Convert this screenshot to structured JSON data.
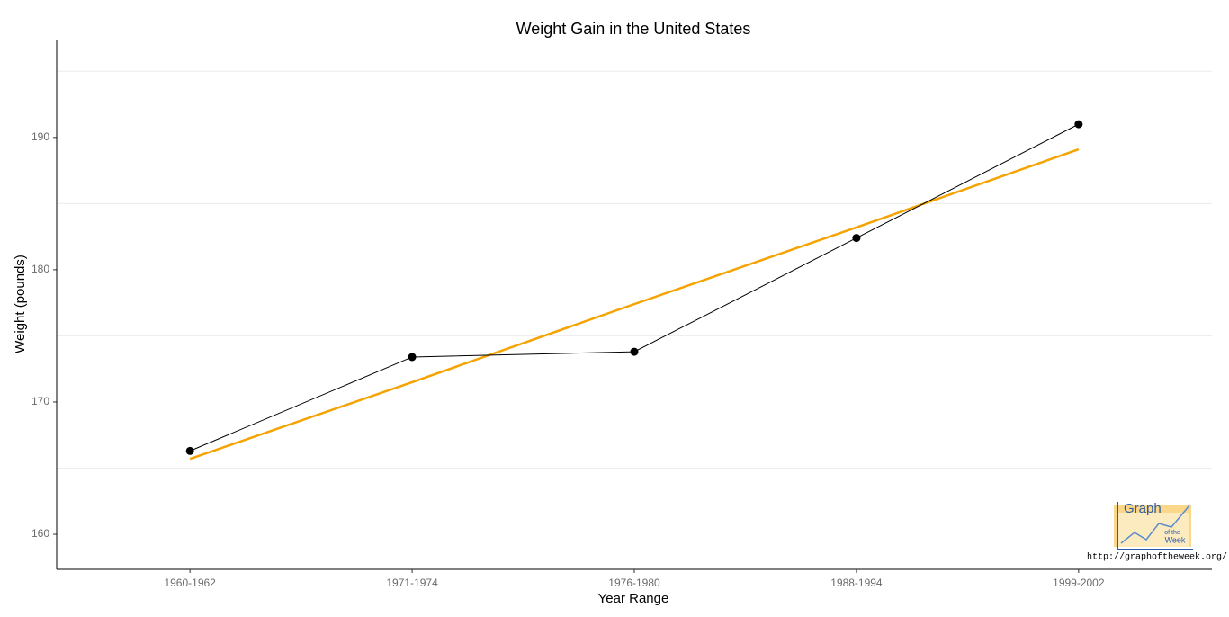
{
  "chart_data": {
    "type": "line",
    "title": "Weight Gain in the United States",
    "x_label": "Year Range",
    "y_label": "Weight (pounds)",
    "categories": [
      "1960-1962",
      "1971-1974",
      "1976-1980",
      "1988-1994",
      "1999-2002"
    ],
    "values": [
      166.3,
      173.4,
      173.8,
      182.4,
      191.0
    ],
    "color": "#000000",
    "trend": {
      "color": "#f5a300",
      "values": [
        165.7,
        171.5,
        177.4,
        183.2,
        189.1
      ]
    },
    "ylim": [
      157.35,
      197.4
    ],
    "yticks": [
      160,
      170,
      180,
      190
    ],
    "yminor": [
      165,
      175,
      185,
      195
    ],
    "grid": true,
    "logo_lines": [
      "Graph",
      "of the",
      "Week"
    ],
    "logo_url": "http://graphoftheweek.org/"
  }
}
